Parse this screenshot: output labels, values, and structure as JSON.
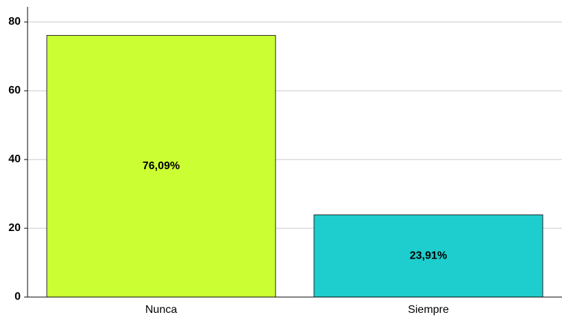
{
  "chart_data": {
    "type": "bar",
    "categories": [
      "Nunca",
      "Siempre"
    ],
    "values": [
      76.09,
      23.91
    ],
    "value_labels": [
      "76,09%",
      "23,91%"
    ],
    "colors": [
      "#ccff33",
      "#1ecdcd"
    ],
    "ylim": [
      0,
      84.4
    ],
    "yticks": [
      0,
      20,
      40,
      60,
      80
    ],
    "grid": true
  }
}
